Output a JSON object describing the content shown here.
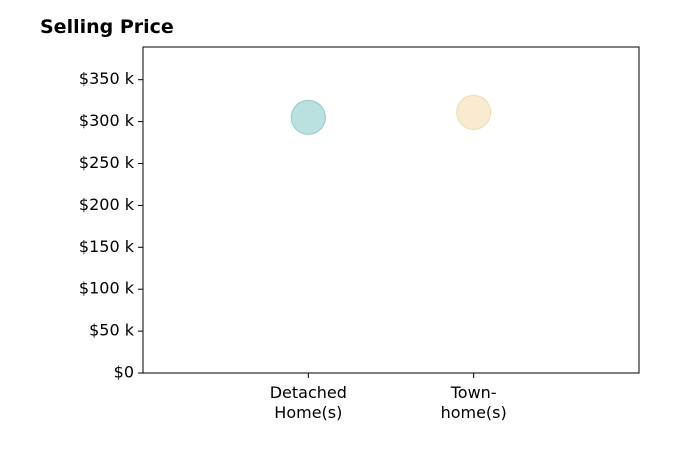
{
  "chart_data": {
    "type": "scatter",
    "title": "Selling Price",
    "xlabel": "",
    "ylabel": "",
    "categories": [
      {
        "lines": [
          "Detached",
          "Home(s)"
        ]
      },
      {
        "lines": [
          "Town-",
          "home(s)"
        ]
      }
    ],
    "values": [
      305,
      311
    ],
    "point_colors": [
      "#a9dad7",
      "#f7e6c4"
    ],
    "point_edge_colors": [
      "#8ccbc6",
      "#efdaae"
    ],
    "ylim": [
      0,
      389
    ],
    "xlim": [
      -1,
      2
    ],
    "yticks": [
      0,
      50,
      100,
      150,
      200,
      250,
      300,
      350
    ],
    "ytick_labels": [
      "$0",
      "$50 k",
      "$100 k",
      "$150 k",
      "$200 k",
      "$250 k",
      "$300 k",
      "$350 k"
    ],
    "grid": false,
    "legend": "none"
  }
}
